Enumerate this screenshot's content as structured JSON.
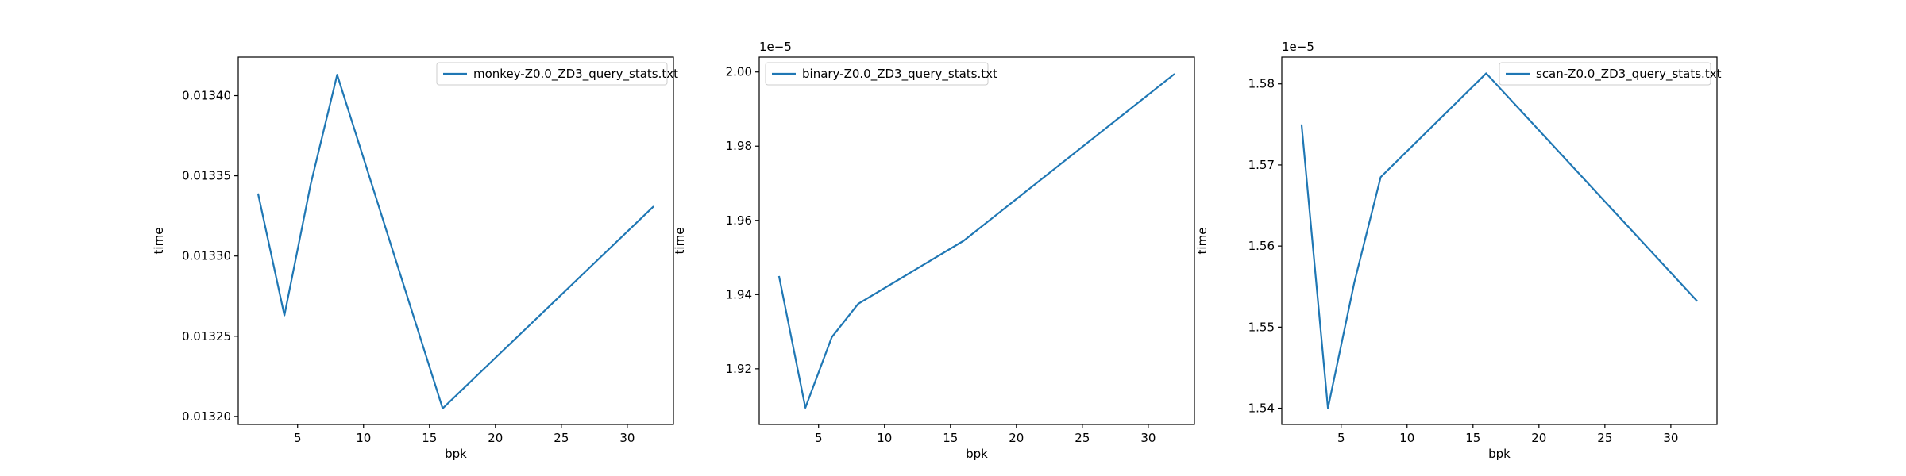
{
  "chart_data": [
    {
      "type": "line",
      "xlabel": "bpk",
      "ylabel": "time",
      "offset_text": "",
      "xlim": [
        0.5,
        33.5
      ],
      "ylim": [
        0.013195,
        0.013424
      ],
      "xticks": [
        5,
        10,
        15,
        20,
        25,
        30
      ],
      "yticks": [
        0.0132,
        0.01325,
        0.0133,
        0.01335,
        0.0134
      ],
      "ytick_labels": [
        "0.01320",
        "0.01325",
        "0.01330",
        "0.01335",
        "0.01340"
      ],
      "legend_position": "upper-right",
      "series": [
        {
          "name": "monkey-Z0.0_ZD3_query_stats.txt",
          "color": "#1f77b4",
          "x": [
            2,
            4,
            6,
            8,
            16,
            32
          ],
          "y": [
            0.013339,
            0.013263,
            0.013345,
            0.013413,
            0.013205,
            0.013331
          ]
        }
      ]
    },
    {
      "type": "line",
      "xlabel": "bpk",
      "ylabel": "time",
      "offset_text": "1e−5",
      "xlim": [
        0.5,
        33.5
      ],
      "ylim": [
        1.905,
        2.004
      ],
      "xticks": [
        5,
        10,
        15,
        20,
        25,
        30
      ],
      "yticks": [
        1.92,
        1.94,
        1.96,
        1.98,
        2.0
      ],
      "ytick_labels": [
        "1.92",
        "1.94",
        "1.96",
        "1.98",
        "2.00"
      ],
      "legend_position": "upper-left",
      "series": [
        {
          "name": "binary-Z0.0_ZD3_query_stats.txt",
          "color": "#1f77b4",
          "x": [
            2,
            4,
            6,
            8,
            16,
            32
          ],
          "y": [
            1.945,
            1.9095,
            1.9285,
            1.9375,
            1.9545,
            1.9995
          ]
        }
      ]
    },
    {
      "type": "line",
      "xlabel": "bpk",
      "ylabel": "time",
      "offset_text": "1e−5",
      "xlim": [
        0.5,
        33.5
      ],
      "ylim": [
        1.538,
        1.5833
      ],
      "xticks": [
        5,
        10,
        15,
        20,
        25,
        30
      ],
      "yticks": [
        1.54,
        1.55,
        1.56,
        1.57,
        1.58
      ],
      "ytick_labels": [
        "1.54",
        "1.55",
        "1.56",
        "1.57",
        "1.58"
      ],
      "legend_position": "upper-right",
      "series": [
        {
          "name": "scan-Z0.0_ZD3_query_stats.txt",
          "color": "#1f77b4",
          "x": [
            2,
            4,
            6,
            8,
            16,
            32
          ],
          "y": [
            1.575,
            1.54,
            1.5555,
            1.5685,
            1.5813,
            1.5532
          ]
        }
      ]
    }
  ]
}
